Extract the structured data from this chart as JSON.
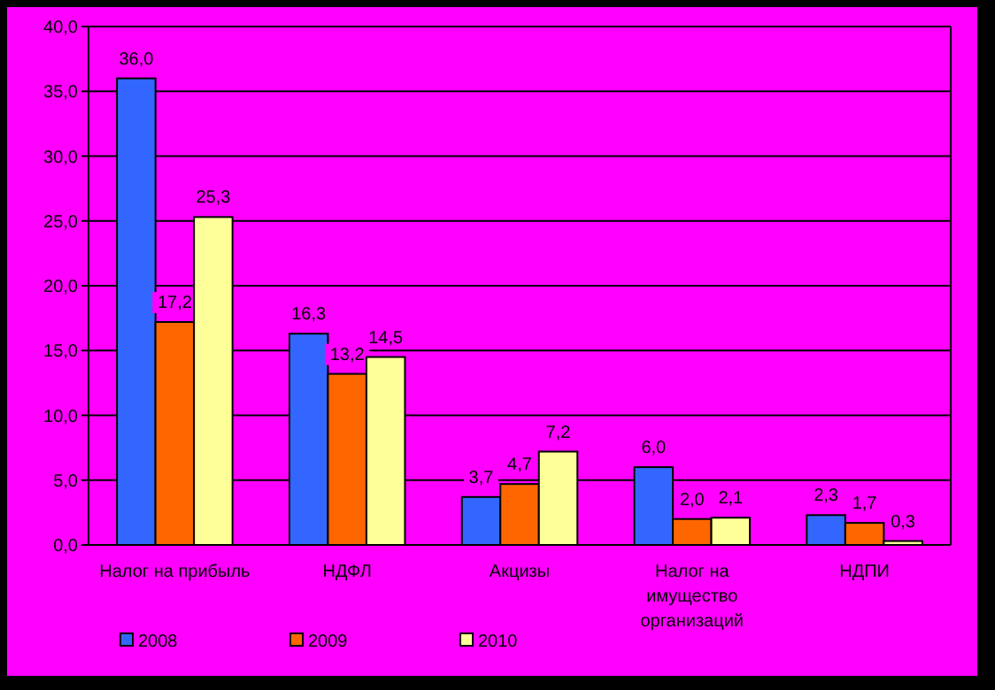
{
  "chart_data": {
    "type": "bar",
    "categories": [
      "Налог на прибыль",
      "НДФЛ",
      "Акцизы",
      "Налог на имущество организаций",
      "НДПИ"
    ],
    "series": [
      {
        "name": "2008",
        "color": "#3366ff",
        "values": [
          36.0,
          16.3,
          3.7,
          6.0,
          2.3
        ],
        "value_labels": [
          "36,0",
          "16,3",
          "3,7",
          "6,0",
          "2,3"
        ]
      },
      {
        "name": "2009",
        "color": "#ff6600",
        "values": [
          17.2,
          13.2,
          4.7,
          2.0,
          1.7
        ],
        "value_labels": [
          "17,2",
          "13,2",
          "4,7",
          "2,0",
          "1,7"
        ]
      },
      {
        "name": "2010",
        "color": "#ffff99",
        "values": [
          25.3,
          14.5,
          7.2,
          2.1,
          0.3
        ],
        "value_labels": [
          "25,3",
          "14,5",
          "7,2",
          "2,1",
          "0,3"
        ]
      }
    ],
    "ylim": [
      0,
      40
    ],
    "yticks": [
      {
        "value": 0,
        "label": "0,0"
      },
      {
        "value": 5,
        "label": "5,0"
      },
      {
        "value": 10,
        "label": "10,0"
      },
      {
        "value": 15,
        "label": "15,0"
      },
      {
        "value": 20,
        "label": "20,0"
      },
      {
        "value": 25,
        "label": "25,0"
      },
      {
        "value": 30,
        "label": "30,0"
      },
      {
        "value": 35,
        "label": "35,0"
      },
      {
        "value": 40,
        "label": "40,0"
      }
    ],
    "grid": "y",
    "legend": "bottom"
  }
}
